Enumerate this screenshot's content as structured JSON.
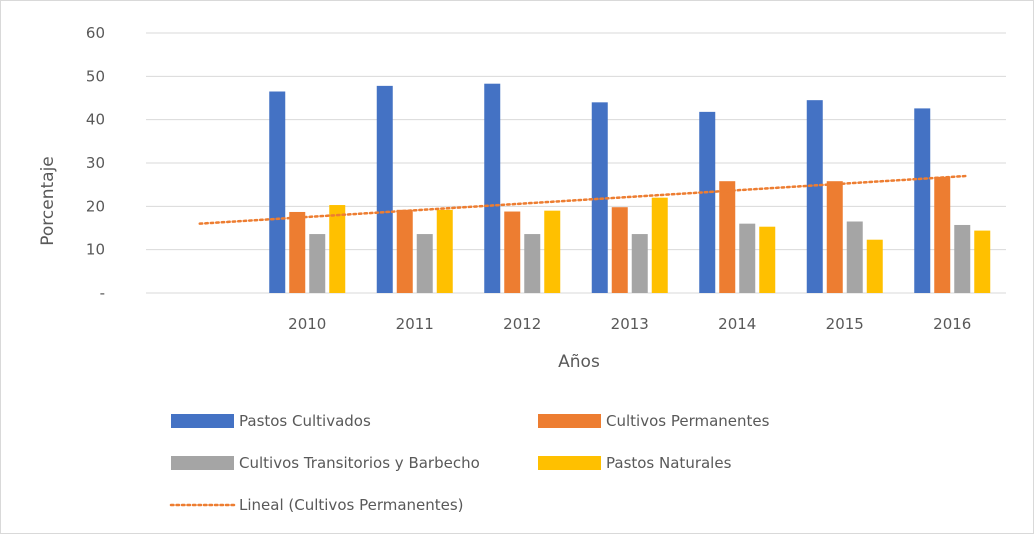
{
  "chart_data": {
    "type": "bar",
    "xlabel": "Años",
    "ylabel": "Porcentaje",
    "ylim": [
      0,
      60
    ],
    "y_ticks": [
      "-",
      "10",
      "20",
      "30",
      "40",
      "50",
      "60"
    ],
    "grid": true,
    "legend_position": "bottom",
    "categories": [
      "2010",
      "2011",
      "2012",
      "2013",
      "2014",
      "2015",
      "2016"
    ],
    "series": [
      {
        "name": "Pastos Cultivados",
        "color": "#4472C4",
        "values": [
          46.5,
          47.8,
          48.3,
          44.0,
          41.8,
          44.5,
          42.6
        ]
      },
      {
        "name": "Cultivos Permanentes",
        "color": "#ED7D31",
        "values": [
          18.7,
          19.2,
          18.8,
          19.8,
          25.8,
          25.8,
          26.8
        ]
      },
      {
        "name": "Cultivos Transitorios y Barbecho",
        "color": "#A5A5A5",
        "values": [
          13.6,
          13.6,
          13.6,
          13.6,
          16.0,
          16.5,
          15.7
        ]
      },
      {
        "name": "Pastos Naturales",
        "color": "#FFC000",
        "values": [
          20.3,
          19.2,
          19.0,
          22.0,
          15.3,
          12.3,
          14.4
        ]
      }
    ],
    "trendline": {
      "name": "Lineal (Cultivos Permanentes)",
      "color": "#ED7D31",
      "style": "dotted",
      "values": [
        16.0,
        27.0
      ]
    }
  }
}
